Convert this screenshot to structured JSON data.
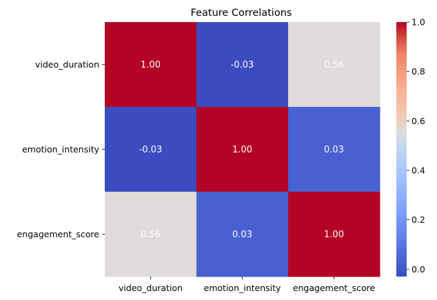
{
  "chart_data": {
    "type": "heatmap",
    "title": "Feature Correlations",
    "x_labels": [
      "video_duration",
      "emotion_intensity",
      "engagement_score"
    ],
    "y_labels": [
      "video_duration",
      "emotion_intensity",
      "engagement_score"
    ],
    "values": [
      [
        1.0,
        -0.03,
        0.56
      ],
      [
        -0.03,
        1.0,
        0.03
      ],
      [
        0.56,
        0.03,
        1.0
      ]
    ],
    "cell_labels": [
      [
        "1.00",
        "-0.03",
        "0.56"
      ],
      [
        "-0.03",
        "1.00",
        "0.03"
      ],
      [
        "0.56",
        "0.03",
        "1.00"
      ]
    ],
    "colormap": "coolwarm",
    "colorbar": {
      "range": [
        -0.03,
        1.0
      ],
      "ticks": [
        0.0,
        0.2,
        0.4,
        0.6,
        0.8,
        1.0
      ],
      "tick_labels": [
        "0.0",
        "0.2",
        "0.4",
        "0.6",
        "0.8",
        "1.0"
      ]
    },
    "annotation_color": "#ffffff"
  }
}
